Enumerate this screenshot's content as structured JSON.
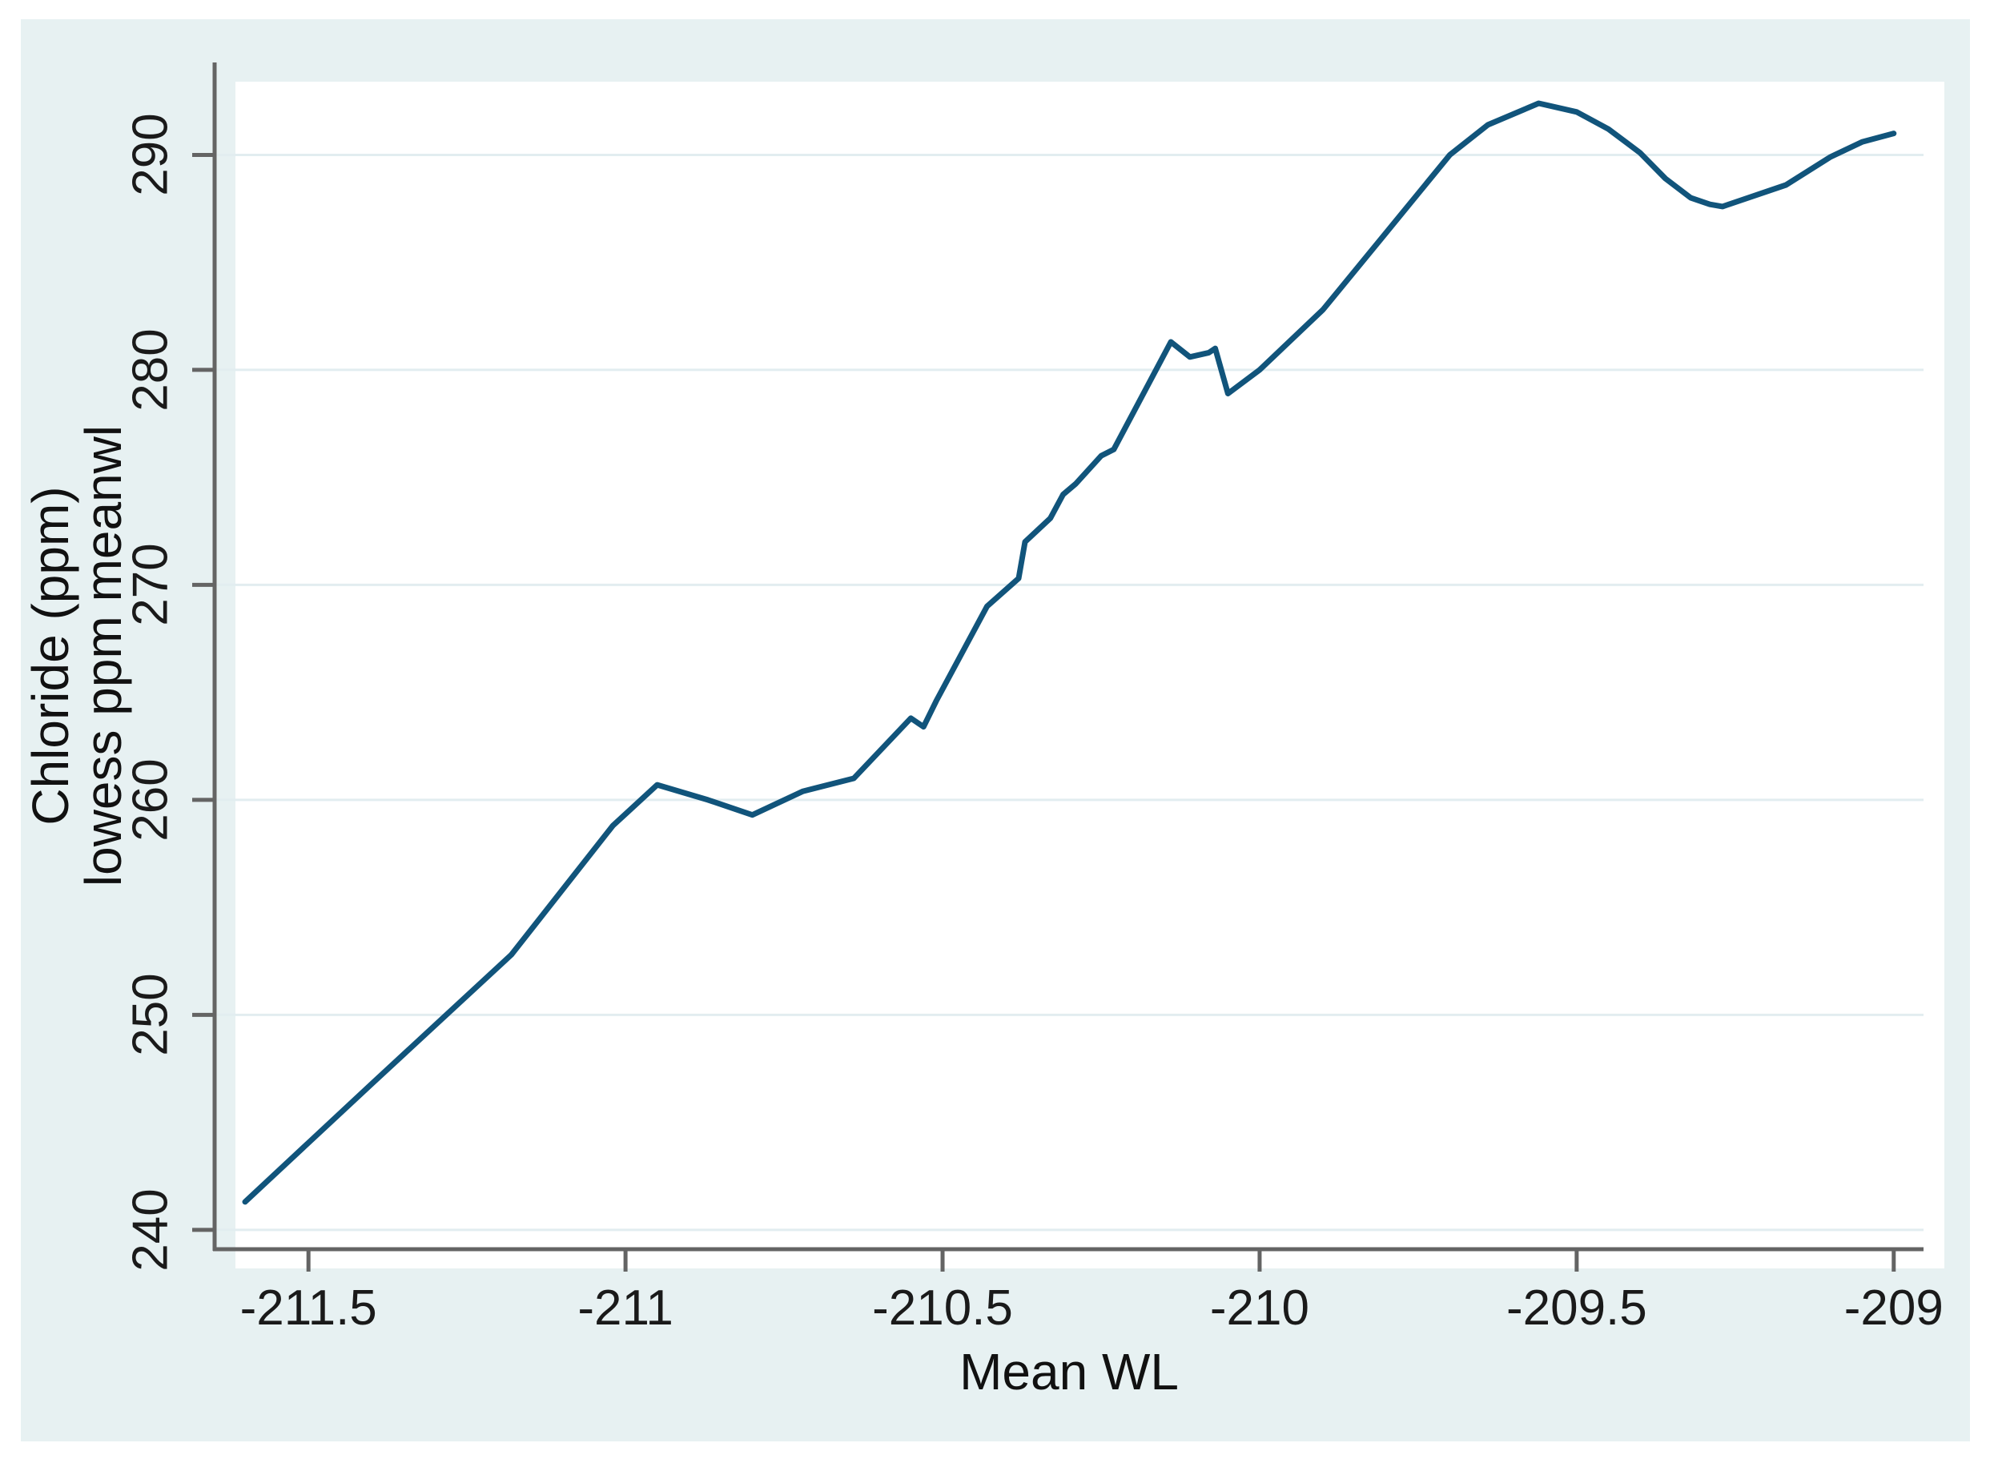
{
  "chart_data": {
    "type": "line",
    "title": "",
    "xlabel": "Mean WL",
    "ylabel_line1": "Chloride (ppm)",
    "ylabel_line2": "lowess ppm meanwl",
    "x_ticks": [
      -211.5,
      -211,
      -210.5,
      -210,
      -209.5,
      -209
    ],
    "x_tick_labels": [
      "-211.5",
      "-211",
      "-210.5",
      "-210",
      "-209.5",
      "-209"
    ],
    "y_ticks": [
      240,
      250,
      260,
      270,
      280,
      290
    ],
    "y_tick_labels": [
      "240",
      "250",
      "260",
      "270",
      "280",
      "290"
    ],
    "xlim": [
      -211.648,
      -208.953
    ],
    "ylim": [
      239.1,
      294.3
    ],
    "grid": "horizontal-only",
    "legend": "none",
    "series": [
      {
        "name": "lowess ppm meanwl",
        "color": "#11547b",
        "points": [
          [
            -211.6,
            241.3
          ],
          [
            -211.4,
            246.8
          ],
          [
            -211.18,
            252.8
          ],
          [
            -211.02,
            258.8
          ],
          [
            -210.95,
            260.7
          ],
          [
            -210.87,
            260.0
          ],
          [
            -210.8,
            259.3
          ],
          [
            -210.72,
            260.4
          ],
          [
            -210.64,
            261.0
          ],
          [
            -210.55,
            263.8
          ],
          [
            -210.53,
            263.4
          ],
          [
            -210.51,
            264.6
          ],
          [
            -210.43,
            269.0
          ],
          [
            -210.38,
            270.3
          ],
          [
            -210.37,
            272.0
          ],
          [
            -210.33,
            273.1
          ],
          [
            -210.31,
            274.2
          ],
          [
            -210.29,
            274.7
          ],
          [
            -210.25,
            276.0
          ],
          [
            -210.23,
            276.3
          ],
          [
            -210.14,
            281.3
          ],
          [
            -210.11,
            280.6
          ],
          [
            -210.08,
            280.8
          ],
          [
            -210.07,
            281.0
          ],
          [
            -210.05,
            278.9
          ],
          [
            -210.0,
            280.0
          ],
          [
            -209.9,
            282.8
          ],
          [
            -209.8,
            286.4
          ],
          [
            -209.7,
            290.0
          ],
          [
            -209.64,
            291.4
          ],
          [
            -209.56,
            292.4
          ],
          [
            -209.5,
            292.0
          ],
          [
            -209.45,
            291.2
          ],
          [
            -209.4,
            290.1
          ],
          [
            -209.36,
            288.9
          ],
          [
            -209.32,
            288.0
          ],
          [
            -209.29,
            287.7
          ],
          [
            -209.27,
            287.6
          ],
          [
            -209.17,
            288.6
          ],
          [
            -209.1,
            289.9
          ],
          [
            -209.05,
            290.6
          ],
          [
            -209.0,
            291.0
          ]
        ]
      }
    ]
  },
  "colors": {
    "graph_background": "#e7f1f2",
    "plot_background": "#ffffff",
    "gridline": "#e2edf0",
    "axis": "#646464",
    "line": "#11547b",
    "text": "#1a1a1a"
  }
}
